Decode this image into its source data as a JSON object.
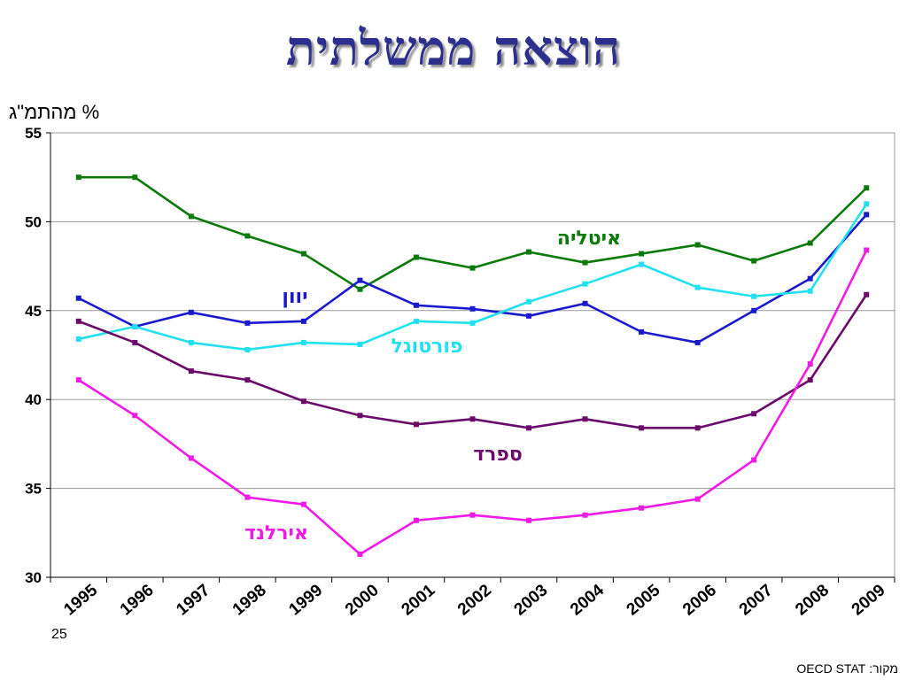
{
  "slide": {
    "title": "הוצאה ממשלתית",
    "unit_label": "% מהתמ\"ג",
    "page_number": "25",
    "source": "מקור: OECD STAT"
  },
  "chart_data": {
    "type": "line",
    "title": "הוצאה ממשלתית",
    "ylabel": "% מהתמ\"ג",
    "xlabel": "",
    "ylim": [
      30,
      55
    ],
    "yticks": [
      30,
      35,
      40,
      45,
      50,
      55
    ],
    "grid": true,
    "legend": "inline labels",
    "categories": [
      "1995",
      "1996",
      "1997",
      "1998",
      "1999",
      "2000",
      "2001",
      "2002",
      "2003",
      "2004",
      "2005",
      "2006",
      "2007",
      "2008",
      "2009"
    ],
    "series": [
      {
        "name": "איטליה",
        "color": "#0a7a0a",
        "values": [
          52.5,
          52.5,
          50.3,
          49.2,
          48.2,
          46.2,
          48.0,
          47.4,
          48.3,
          47.7,
          48.2,
          48.7,
          47.8,
          48.8,
          51.9
        ]
      },
      {
        "name": "יוון",
        "color": "#1a1acc",
        "values": [
          45.7,
          44.1,
          44.9,
          44.3,
          44.4,
          46.7,
          45.3,
          45.1,
          44.7,
          45.4,
          43.8,
          43.2,
          45.0,
          46.8,
          50.4
        ]
      },
      {
        "name": "פורטוגל",
        "color": "#22e0ee",
        "values": [
          43.4,
          44.1,
          43.2,
          42.8,
          43.2,
          43.1,
          44.4,
          44.3,
          45.5,
          46.5,
          47.6,
          46.3,
          45.8,
          46.1,
          51.0
        ]
      },
      {
        "name": "ספרד",
        "color": "#6b0a6b",
        "values": [
          44.4,
          43.2,
          41.6,
          41.1,
          39.9,
          39.1,
          38.6,
          38.9,
          38.4,
          38.9,
          38.4,
          38.4,
          39.2,
          41.1,
          45.9
        ]
      },
      {
        "name": "אירלנד",
        "color": "#f01ae6",
        "values": [
          41.1,
          39.1,
          36.7,
          34.5,
          34.1,
          31.3,
          33.2,
          33.5,
          33.2,
          33.5,
          33.9,
          34.4,
          36.6,
          42.0,
          48.4
        ]
      }
    ]
  }
}
